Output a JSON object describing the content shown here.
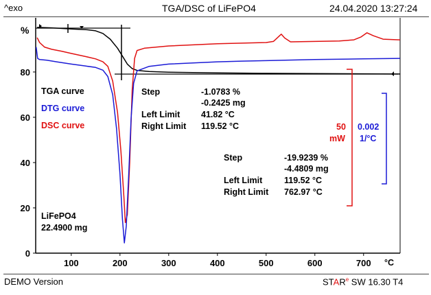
{
  "header": {
    "exo_label": "^exo",
    "title": "TGA/DSC of LiFePO4",
    "timestamp": "24.04.2020 13:27:24"
  },
  "footer": {
    "demo": "DEMO Version",
    "software_prefix": "ST",
    "software_accent": "A",
    "software_r": "R",
    "software_sup": "e",
    "software_rest": " SW 16.30 T4"
  },
  "colors": {
    "tga": "#000000",
    "dtg": "#1a1ad6",
    "dsc": "#e01010"
  },
  "legend": [
    {
      "label": "TGA curve",
      "color": "#000000"
    },
    {
      "label": "DTG curve",
      "color": "#1a1ad6"
    },
    {
      "label": "DSC curve",
      "color": "#e01010"
    }
  ],
  "sample": {
    "name": "LiFePO4",
    "mass": "22.4900 mg"
  },
  "step1": {
    "step_label": "Step",
    "step_pct": "-1.0783 %",
    "step_mg": "-0.2425 mg",
    "left_label": "Left Limit",
    "left_val": "41.82 °C",
    "right_label": "Right Limit",
    "right_val": "119.52 °C"
  },
  "step2": {
    "step_label": "Step",
    "step_pct": "-19.9239 %",
    "step_mg": "-4.4809 mg",
    "left_label": "Left Limit",
    "left_val": "119.52 °C",
    "right_label": "Right Limit",
    "right_val": "762.97 °C"
  },
  "scales": {
    "dsc_value": "50",
    "dsc_unit": "mW",
    "dtg_value": "0.002",
    "dtg_unit": "1/°C"
  },
  "chart_data": {
    "type": "line",
    "title": "TGA/DSC of LiFePO4",
    "xlabel": "°C",
    "ylabel": "%",
    "xlim": [
      27,
      775
    ],
    "ylim": [
      0,
      102.7
    ],
    "xticks": [
      100,
      200,
      300,
      400,
      500,
      600,
      700
    ],
    "yticks": [
      0,
      20,
      40,
      60,
      80
    ],
    "ytick_labels": [
      "0",
      "20",
      "40",
      "60",
      "80"
    ],
    "xtick_labels": [
      "100",
      "200",
      "300",
      "400",
      "500",
      "600",
      "700"
    ],
    "grid": false,
    "legend_position": "left",
    "series": [
      {
        "name": "TGA curve",
        "color": "#000000",
        "x": [
          30,
          60,
          100,
          130,
          150,
          165,
          180,
          195,
          205,
          215,
          225,
          235,
          260,
          300,
          400,
          500,
          600,
          700,
          775
        ],
        "y": [
          99.7,
          99.5,
          99.0,
          98.7,
          98.2,
          97.0,
          94.5,
          90.5,
          87,
          83.5,
          81.5,
          80.7,
          80.2,
          79.9,
          79.6,
          79.4,
          79.3,
          79.2,
          79.1
        ]
      },
      {
        "name": "DSC curve",
        "color": "#e01010",
        "x": [
          30,
          35,
          45,
          60,
          80,
          100,
          130,
          150,
          165,
          175,
          185,
          195,
          202,
          208,
          211,
          215,
          220,
          225,
          230,
          235,
          250,
          300,
          400,
          500,
          515,
          525,
          531,
          538,
          550,
          600,
          650,
          680,
          695,
          707,
          720,
          740,
          775
        ],
        "y": [
          95.2,
          93,
          91,
          90,
          89.2,
          88.2,
          86.8,
          85.8,
          84.5,
          82.5,
          76,
          62,
          45,
          25,
          13.5,
          17,
          40,
          72,
          86,
          89.5,
          90.5,
          91.5,
          92.5,
          93,
          93.5,
          95.5,
          96.7,
          95,
          93.3,
          93.5,
          93.7,
          94.2,
          95.5,
          97.3,
          96,
          94.5,
          94.2
        ]
      },
      {
        "name": "DTG curve",
        "color": "#1a1ad6",
        "x": [
          28,
          31,
          35,
          50,
          70,
          100,
          130,
          150,
          165,
          175,
          185,
          193,
          200,
          205,
          209,
          213,
          218,
          223,
          228,
          235,
          260,
          300,
          400,
          450,
          500,
          600,
          700,
          775
        ],
        "y": [
          91,
          86,
          85.5,
          85.2,
          84.5,
          83.5,
          82.6,
          82,
          80.8,
          78,
          70,
          55,
          35,
          15,
          4.5,
          12,
          35,
          60,
          75,
          80.5,
          82.5,
          83.5,
          84.5,
          84.8,
          85,
          85.5,
          85.8,
          86
        ]
      }
    ]
  }
}
